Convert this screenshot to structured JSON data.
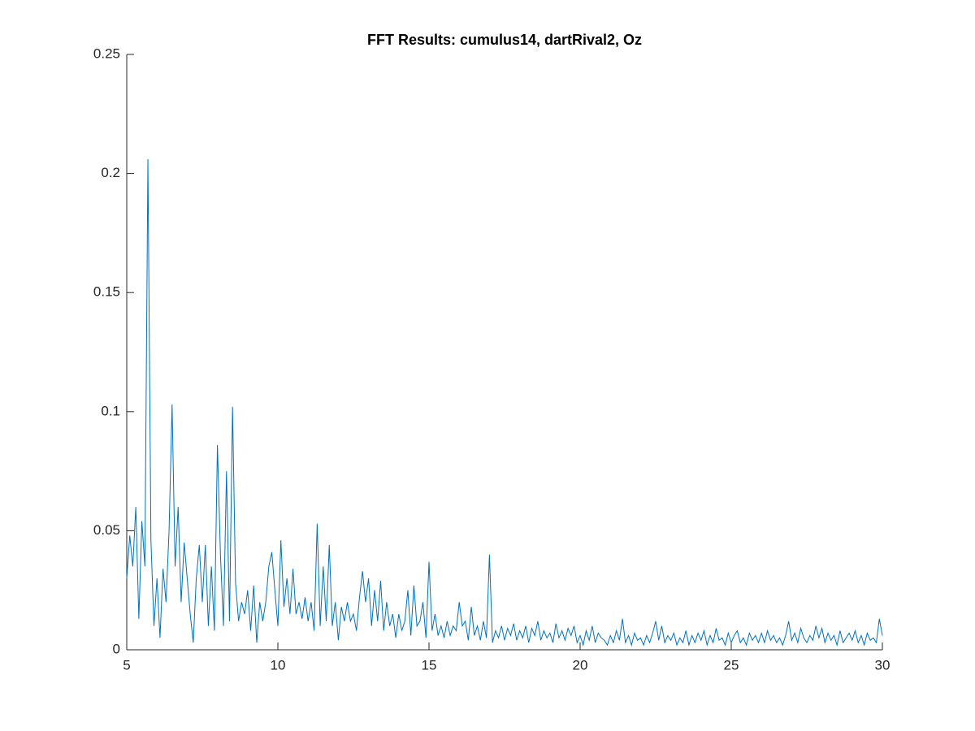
{
  "chart_data": {
    "type": "line",
    "title": "FFT Results: cumulus14, dartRival2, Oz",
    "x": [
      5.0,
      5.1,
      5.2,
      5.3,
      5.4,
      5.5,
      5.6,
      5.7,
      5.8,
      5.9,
      6.0,
      6.1,
      6.2,
      6.3,
      6.4,
      6.5,
      6.6,
      6.7,
      6.8,
      6.9,
      7.0,
      7.1,
      7.2,
      7.3,
      7.4,
      7.5,
      7.6,
      7.7,
      7.8,
      7.9,
      8.0,
      8.1,
      8.2,
      8.3,
      8.4,
      8.5,
      8.6,
      8.7,
      8.8,
      8.9,
      9.0,
      9.1,
      9.2,
      9.3,
      9.4,
      9.5,
      9.6,
      9.7,
      9.8,
      9.9,
      10.0,
      10.1,
      10.2,
      10.3,
      10.4,
      10.5,
      10.6,
      10.7,
      10.8,
      10.9,
      11.0,
      11.1,
      11.2,
      11.3,
      11.4,
      11.5,
      11.6,
      11.7,
      11.8,
      11.9,
      12.0,
      12.1,
      12.2,
      12.3,
      12.4,
      12.5,
      12.6,
      12.7,
      12.8,
      12.9,
      13.0,
      13.1,
      13.2,
      13.3,
      13.4,
      13.5,
      13.6,
      13.7,
      13.8,
      13.9,
      14.0,
      14.1,
      14.2,
      14.3,
      14.4,
      14.5,
      14.6,
      14.7,
      14.8,
      14.9,
      15.0,
      15.1,
      15.2,
      15.3,
      15.4,
      15.5,
      15.6,
      15.7,
      15.8,
      15.9,
      16.0,
      16.1,
      16.2,
      16.3,
      16.4,
      16.5,
      16.6,
      16.7,
      16.8,
      16.9,
      17.0,
      17.1,
      17.2,
      17.3,
      17.4,
      17.5,
      17.6,
      17.7,
      17.8,
      17.9,
      18.0,
      18.1,
      18.2,
      18.3,
      18.4,
      18.5,
      18.6,
      18.7,
      18.8,
      18.9,
      19.0,
      19.1,
      19.2,
      19.3,
      19.4,
      19.5,
      19.6,
      19.7,
      19.8,
      19.9,
      20.0,
      20.1,
      20.2,
      20.3,
      20.4,
      20.5,
      20.6,
      20.7,
      20.8,
      20.9,
      21.0,
      21.1,
      21.2,
      21.3,
      21.4,
      21.5,
      21.6,
      21.7,
      21.8,
      21.9,
      22.0,
      22.1,
      22.2,
      22.3,
      22.4,
      22.5,
      22.6,
      22.7,
      22.8,
      22.9,
      23.0,
      23.1,
      23.2,
      23.3,
      23.4,
      23.5,
      23.6,
      23.7,
      23.8,
      23.9,
      24.0,
      24.1,
      24.2,
      24.3,
      24.4,
      24.5,
      24.6,
      24.7,
      24.8,
      24.9,
      25.0,
      25.1,
      25.2,
      25.3,
      25.4,
      25.5,
      25.6,
      25.7,
      25.8,
      25.9,
      26.0,
      26.1,
      26.2,
      26.3,
      26.4,
      26.5,
      26.6,
      26.7,
      26.8,
      26.9,
      27.0,
      27.1,
      27.2,
      27.3,
      27.4,
      27.5,
      27.6,
      27.7,
      27.8,
      27.9,
      28.0,
      28.1,
      28.2,
      28.3,
      28.4,
      28.5,
      28.6,
      28.7,
      28.8,
      28.9,
      29.0,
      29.1,
      29.2,
      29.3,
      29.4,
      29.5,
      29.6,
      29.7,
      29.8,
      29.9,
      30.0
    ],
    "series": [
      {
        "color": "#0072BD",
        "values": [
          0.03,
          0.048,
          0.035,
          0.06,
          0.013,
          0.054,
          0.035,
          0.206,
          0.046,
          0.01,
          0.03,
          0.005,
          0.034,
          0.02,
          0.05,
          0.103,
          0.035,
          0.06,
          0.02,
          0.045,
          0.03,
          0.015,
          0.003,
          0.03,
          0.044,
          0.02,
          0.044,
          0.01,
          0.035,
          0.008,
          0.086,
          0.04,
          0.01,
          0.075,
          0.012,
          0.102,
          0.028,
          0.012,
          0.02,
          0.015,
          0.025,
          0.008,
          0.027,
          0.003,
          0.02,
          0.012,
          0.02,
          0.035,
          0.041,
          0.025,
          0.01,
          0.046,
          0.018,
          0.03,
          0.015,
          0.034,
          0.015,
          0.02,
          0.013,
          0.022,
          0.012,
          0.02,
          0.008,
          0.053,
          0.01,
          0.035,
          0.012,
          0.044,
          0.01,
          0.02,
          0.004,
          0.018,
          0.012,
          0.02,
          0.012,
          0.015,
          0.008,
          0.022,
          0.033,
          0.02,
          0.03,
          0.01,
          0.025,
          0.012,
          0.029,
          0.008,
          0.02,
          0.01,
          0.015,
          0.005,
          0.015,
          0.008,
          0.012,
          0.025,
          0.006,
          0.027,
          0.01,
          0.012,
          0.02,
          0.005,
          0.037,
          0.008,
          0.015,
          0.006,
          0.01,
          0.005,
          0.012,
          0.006,
          0.01,
          0.008,
          0.02,
          0.01,
          0.012,
          0.004,
          0.018,
          0.006,
          0.01,
          0.004,
          0.012,
          0.005,
          0.04,
          0.003,
          0.008,
          0.005,
          0.01,
          0.004,
          0.009,
          0.006,
          0.011,
          0.004,
          0.008,
          0.005,
          0.01,
          0.003,
          0.009,
          0.006,
          0.012,
          0.004,
          0.008,
          0.005,
          0.007,
          0.003,
          0.011,
          0.005,
          0.008,
          0.004,
          0.009,
          0.006,
          0.01,
          0.003,
          0.006,
          0.002,
          0.008,
          0.004,
          0.01,
          0.003,
          0.007,
          0.005,
          0.004,
          0.002,
          0.006,
          0.003,
          0.008,
          0.004,
          0.013,
          0.003,
          0.006,
          0.002,
          0.007,
          0.004,
          0.005,
          0.002,
          0.006,
          0.003,
          0.007,
          0.012,
          0.004,
          0.01,
          0.003,
          0.006,
          0.004,
          0.007,
          0.002,
          0.005,
          0.003,
          0.008,
          0.002,
          0.006,
          0.003,
          0.007,
          0.004,
          0.008,
          0.002,
          0.006,
          0.003,
          0.009,
          0.004,
          0.005,
          0.002,
          0.007,
          0.003,
          0.006,
          0.008,
          0.003,
          0.005,
          0.002,
          0.007,
          0.004,
          0.006,
          0.003,
          0.007,
          0.003,
          0.008,
          0.004,
          0.006,
          0.003,
          0.005,
          0.002,
          0.006,
          0.012,
          0.004,
          0.007,
          0.003,
          0.009,
          0.005,
          0.003,
          0.006,
          0.004,
          0.01,
          0.005,
          0.009,
          0.003,
          0.007,
          0.004,
          0.006,
          0.002,
          0.008,
          0.003,
          0.005,
          0.007,
          0.004,
          0.008,
          0.003,
          0.006,
          0.002,
          0.007,
          0.004,
          0.005,
          0.003,
          0.013,
          0.006
        ]
      }
    ],
    "xlim": [
      5,
      30
    ],
    "xticks": [
      5,
      10,
      15,
      20,
      25,
      30
    ],
    "ylim": [
      0,
      0.25
    ],
    "yticks": [
      0,
      0.05,
      0.1,
      0.15,
      0.2,
      0.25
    ]
  }
}
